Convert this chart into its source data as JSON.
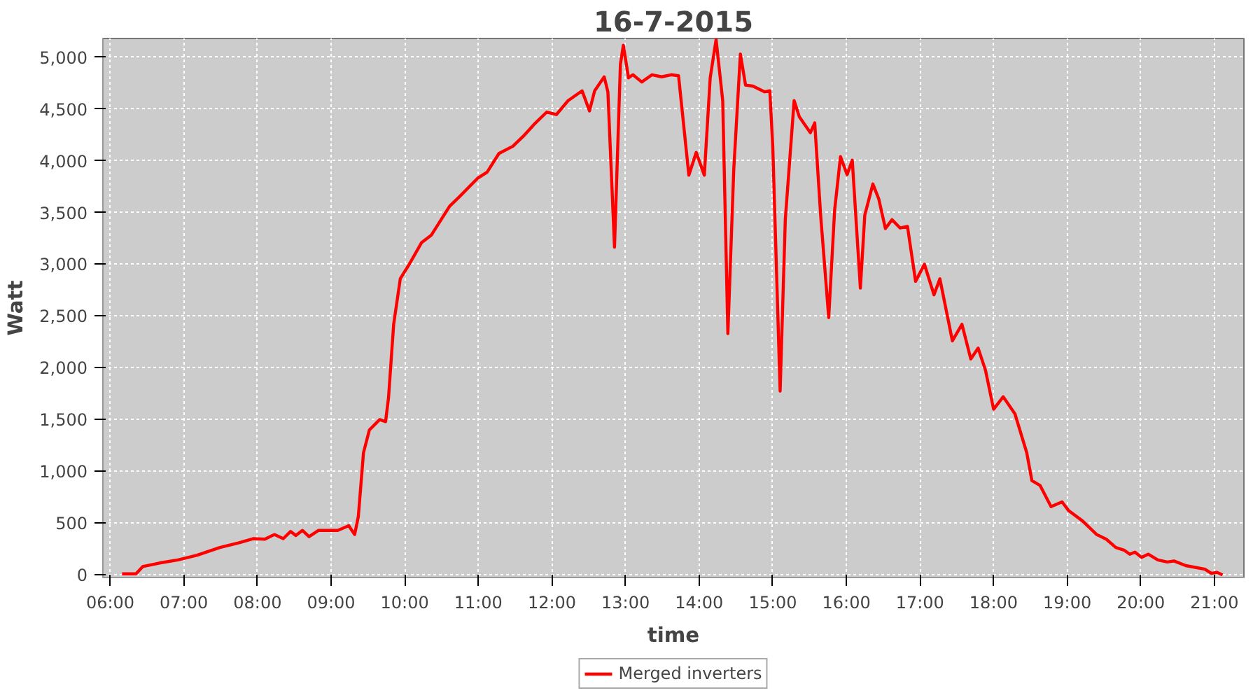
{
  "chart_data": {
    "type": "line",
    "title": "16-7-2015",
    "xlabel": "time",
    "ylabel": "Watt",
    "xlim": [
      5.9,
      21.4
    ],
    "ylim": [
      -25,
      5180
    ],
    "xticks": [
      {
        "value": 6,
        "label": "06:00"
      },
      {
        "value": 7,
        "label": "07:00"
      },
      {
        "value": 8,
        "label": "08:00"
      },
      {
        "value": 9,
        "label": "09:00"
      },
      {
        "value": 10,
        "label": "10:00"
      },
      {
        "value": 11,
        "label": "11:00"
      },
      {
        "value": 12,
        "label": "12:00"
      },
      {
        "value": 13,
        "label": "13:00"
      },
      {
        "value": 14,
        "label": "14:00"
      },
      {
        "value": 15,
        "label": "15:00"
      },
      {
        "value": 16,
        "label": "16:00"
      },
      {
        "value": 17,
        "label": "17:00"
      },
      {
        "value": 18,
        "label": "18:00"
      },
      {
        "value": 19,
        "label": "19:00"
      },
      {
        "value": 20,
        "label": "20:00"
      },
      {
        "value": 21,
        "label": "21:00"
      }
    ],
    "yticks": [
      {
        "value": 0,
        "label": "0"
      },
      {
        "value": 500,
        "label": "500"
      },
      {
        "value": 1000,
        "label": "1,000"
      },
      {
        "value": 1500,
        "label": "1,500"
      },
      {
        "value": 2000,
        "label": "2,000"
      },
      {
        "value": 2500,
        "label": "2,500"
      },
      {
        "value": 3000,
        "label": "3,000"
      },
      {
        "value": 3500,
        "label": "3,500"
      },
      {
        "value": 4000,
        "label": "4,000"
      },
      {
        "value": 4500,
        "label": "4,500"
      },
      {
        "value": 5000,
        "label": "5,000"
      }
    ],
    "grid": true,
    "legend": "bottom",
    "line_style": "solid",
    "series": [
      {
        "name": "Merged inverters",
        "color": "#ff0000",
        "x": [
          6.16,
          6.35,
          6.44,
          6.67,
          6.92,
          7.18,
          7.49,
          7.75,
          7.94,
          8.1,
          8.23,
          8.35,
          8.45,
          8.52,
          8.61,
          8.7,
          8.83,
          9.09,
          9.24,
          9.32,
          9.37,
          9.44,
          9.52,
          9.66,
          9.74,
          9.78,
          9.85,
          9.94,
          10.07,
          10.23,
          10.36,
          10.61,
          10.74,
          10.99,
          11.12,
          11.28,
          11.47,
          11.63,
          11.77,
          11.93,
          12.06,
          12.22,
          12.41,
          12.51,
          12.58,
          12.71,
          12.76,
          12.85,
          12.93,
          12.97,
          13.04,
          13.1,
          13.22,
          13.36,
          13.49,
          13.62,
          13.72,
          13.86,
          13.96,
          14.07,
          14.15,
          14.23,
          14.32,
          14.39,
          14.47,
          14.56,
          14.63,
          14.73,
          14.89,
          14.96,
          15.0,
          15.1,
          15.17,
          15.29,
          15.36,
          15.51,
          15.57,
          15.65,
          15.76,
          15.84,
          15.92,
          16.01,
          16.08,
          16.19,
          16.25,
          16.36,
          16.44,
          16.53,
          16.62,
          16.73,
          16.83,
          16.94,
          17.06,
          17.19,
          17.27,
          17.44,
          17.57,
          17.69,
          17.79,
          17.89,
          18.0,
          18.13,
          18.29,
          18.45,
          18.52,
          18.63,
          18.78,
          18.93,
          19.02,
          19.21,
          19.4,
          19.53,
          19.66,
          19.77,
          19.85,
          19.92,
          20.01,
          20.1,
          20.23,
          20.36,
          20.45,
          20.61,
          20.87,
          20.96,
          21.03,
          21.11
        ],
        "values": [
          10,
          10,
          80,
          115,
          145,
          190,
          265,
          310,
          350,
          345,
          390,
          350,
          420,
          380,
          430,
          370,
          430,
          430,
          475,
          390,
          565,
          1180,
          1400,
          1500,
          1480,
          1710,
          2420,
          2860,
          3010,
          3210,
          3280,
          3560,
          3650,
          3830,
          3890,
          4070,
          4140,
          4250,
          4360,
          4470,
          4445,
          4580,
          4675,
          4480,
          4675,
          4810,
          4665,
          3165,
          4930,
          5115,
          4800,
          4830,
          4760,
          4830,
          4810,
          4830,
          4820,
          3860,
          4080,
          3860,
          4800,
          5170,
          4580,
          2330,
          3915,
          5030,
          4730,
          4720,
          4665,
          4675,
          4135,
          1775,
          3430,
          4580,
          4425,
          4270,
          4365,
          3475,
          2485,
          3520,
          4040,
          3865,
          4005,
          2770,
          3475,
          3775,
          3630,
          3345,
          3430,
          3350,
          3365,
          2835,
          3000,
          2705,
          2860,
          2260,
          2420,
          2085,
          2190,
          1975,
          1600,
          1720,
          1555,
          1180,
          910,
          865,
          660,
          705,
          620,
          520,
          390,
          345,
          265,
          240,
          200,
          220,
          170,
          200,
          145,
          125,
          135,
          90,
          55,
          15,
          25,
          0
        ]
      }
    ]
  }
}
